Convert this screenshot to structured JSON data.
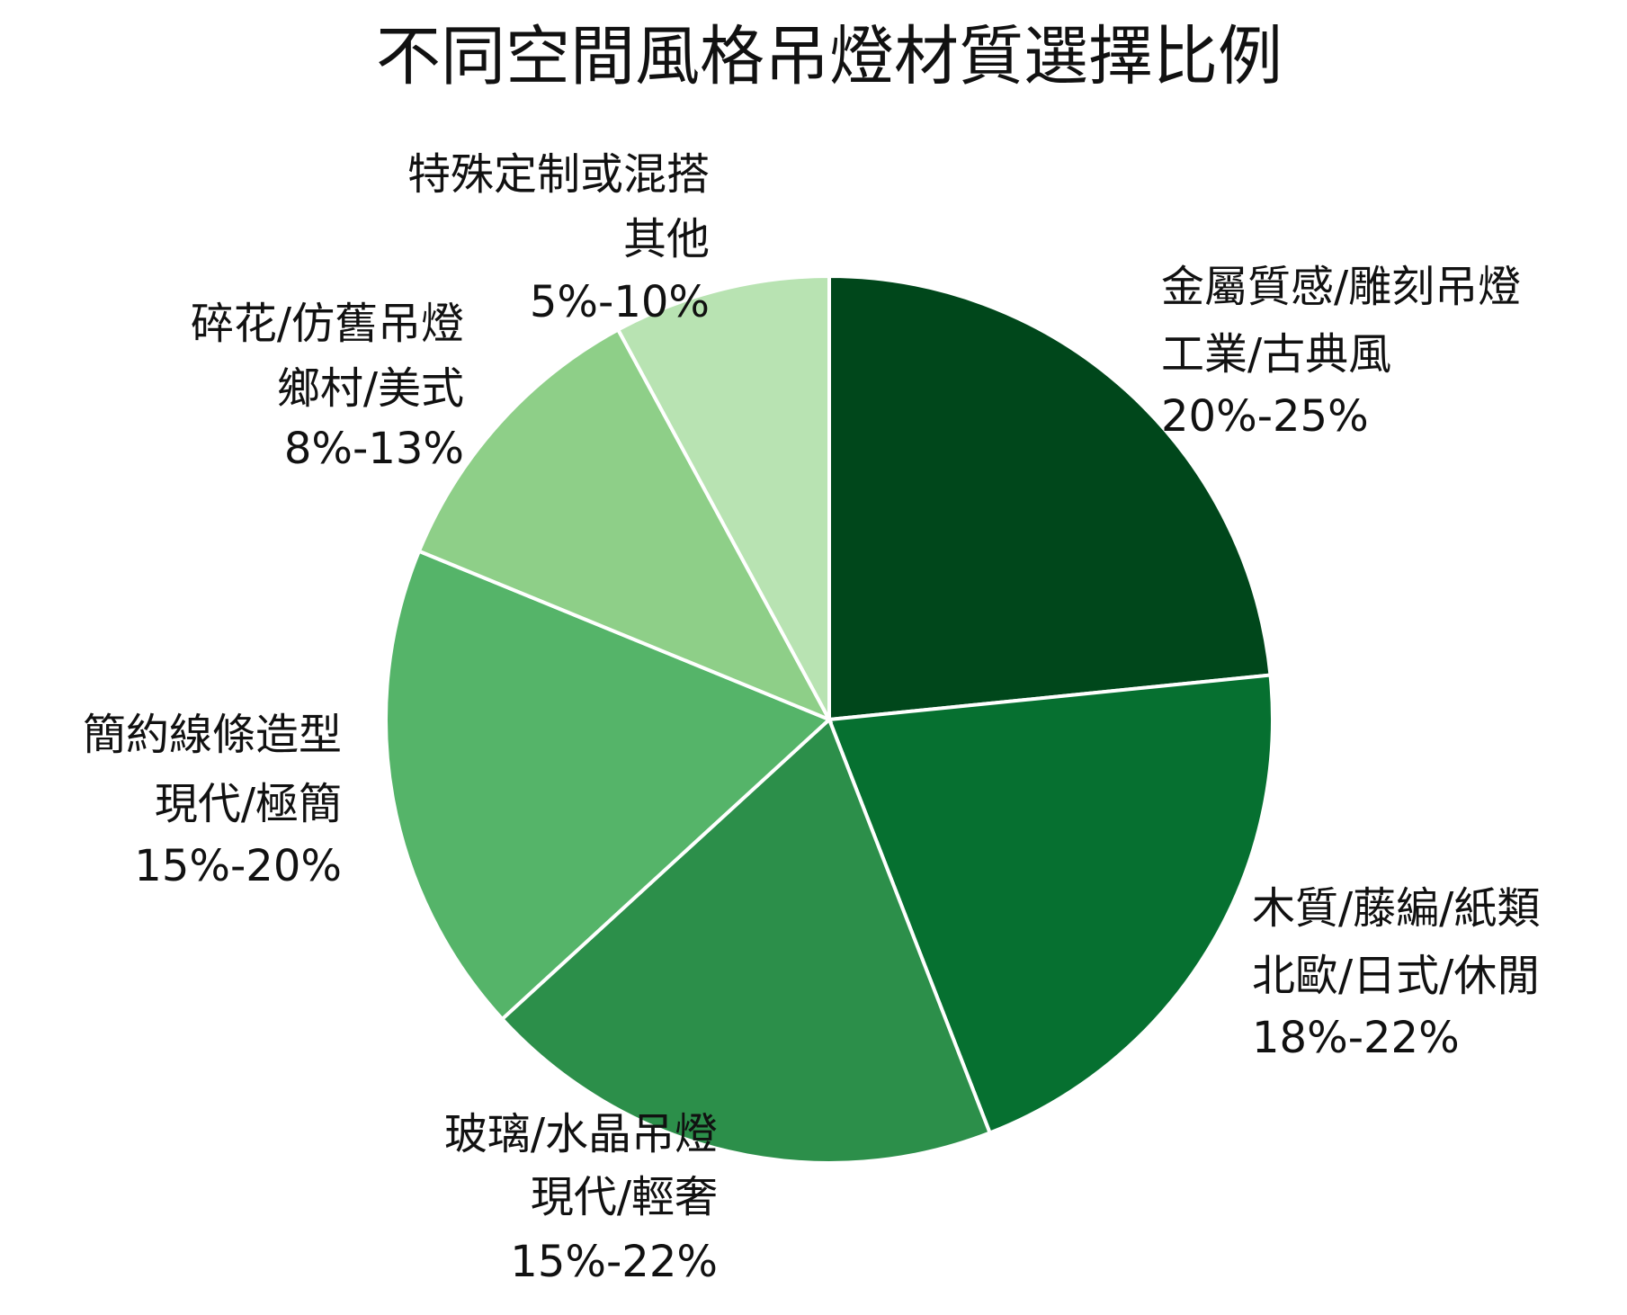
{
  "chart_data": {
    "type": "pie",
    "title": "不同空間風格吊燈材質選擇比例",
    "categories": [
      "金屬質感/雕刻吊燈",
      "木質/藤編/紙類",
      "玻璃/水晶吊燈",
      "簡約線條造型",
      "碎花/仿舊吊燈",
      "特殊定制或混搭"
    ],
    "styles": [
      "工業/古典風",
      "北歐/日式/休閒",
      "現代/輕奢",
      "現代/極簡",
      "鄉村/美式",
      "其他"
    ],
    "ranges": [
      "20%-25%",
      "18%-22%",
      "15%-22%",
      "15%-20%",
      "8%-13%",
      "5%-10%"
    ],
    "values": [
      23.4,
      20.7,
      19.1,
      18.0,
      10.9,
      7.9
    ],
    "colors": [
      "#00471b",
      "#067030",
      "#2c8f4a",
      "#55b469",
      "#8ecf88",
      "#b8e3b2"
    ]
  }
}
